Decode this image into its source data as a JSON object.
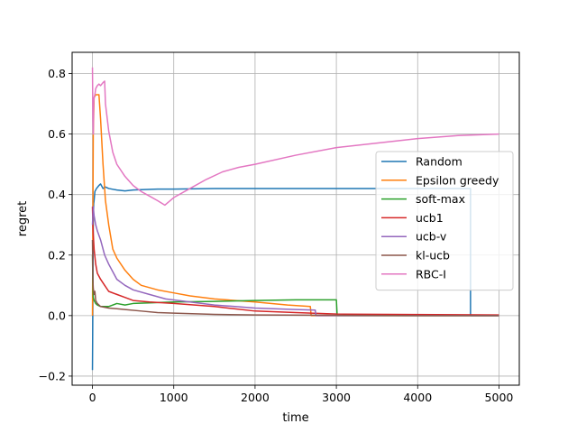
{
  "chart_data": {
    "type": "line",
    "title": "",
    "xlabel": "time",
    "ylabel": "regret",
    "xlim": [
      -250,
      5250
    ],
    "ylim": [
      -0.23,
      0.87
    ],
    "xticks": [
      0,
      1000,
      2000,
      3000,
      4000,
      5000
    ],
    "xtick_labels": [
      "0",
      "1000",
      "2000",
      "3000",
      "4000",
      "5000"
    ],
    "yticks": [
      -0.2,
      0.0,
      0.2,
      0.4,
      0.6,
      0.8
    ],
    "ytick_labels": [
      "−0.2",
      "0.0",
      "0.2",
      "0.4",
      "0.6",
      "0.8"
    ],
    "grid": true,
    "legend_position": "center-right",
    "series": [
      {
        "name": "Random",
        "color": "#1f77b4",
        "x": [
          0,
          3,
          6,
          10,
          15,
          20,
          30,
          50,
          80,
          100,
          130,
          160,
          200,
          300,
          400,
          500,
          600,
          800,
          1000,
          1500,
          2000,
          2500,
          3000,
          3500,
          4000,
          4500,
          4650,
          4650,
          4652,
          5000
        ],
        "y": [
          -0.18,
          -0.05,
          0.1,
          0.3,
          0.37,
          0.38,
          0.41,
          0.42,
          0.43,
          0.435,
          0.42,
          0.425,
          0.42,
          0.415,
          0.412,
          0.415,
          0.416,
          0.418,
          0.418,
          0.42,
          0.42,
          0.42,
          0.42,
          0.42,
          0.42,
          0.42,
          0.42,
          0.005,
          0.0,
          0.0
        ]
      },
      {
        "name": "Epsilon greedy",
        "color": "#ff7f0e",
        "x": [
          0,
          10,
          20,
          40,
          60,
          80,
          100,
          130,
          160,
          200,
          250,
          300,
          400,
          500,
          600,
          800,
          1000,
          1200,
          1500,
          2000,
          2400,
          2680,
          2690,
          5000
        ],
        "y": [
          0.0,
          0.6,
          0.72,
          0.73,
          0.73,
          0.73,
          0.65,
          0.5,
          0.38,
          0.3,
          0.22,
          0.19,
          0.15,
          0.12,
          0.1,
          0.085,
          0.075,
          0.065,
          0.055,
          0.045,
          0.035,
          0.03,
          0.0,
          0.0
        ]
      },
      {
        "name": "soft-max",
        "color": "#2ca02c",
        "x": [
          0,
          5,
          10,
          20,
          40,
          60,
          100,
          200,
          300,
          400,
          500,
          700,
          1000,
          1500,
          2000,
          2500,
          3000,
          3010,
          5000
        ],
        "y": [
          0.2,
          0.1,
          0.06,
          0.05,
          0.04,
          0.035,
          0.03,
          0.03,
          0.04,
          0.035,
          0.04,
          0.042,
          0.045,
          0.047,
          0.05,
          0.052,
          0.052,
          0.0,
          0.0
        ]
      },
      {
        "name": "ucb1",
        "color": "#d62728",
        "x": [
          0,
          5,
          10,
          20,
          40,
          60,
          100,
          150,
          200,
          300,
          400,
          500,
          700,
          1000,
          1500,
          2000,
          2500,
          3000,
          5000
        ],
        "y": [
          0.36,
          0.3,
          0.27,
          0.22,
          0.17,
          0.14,
          0.12,
          0.1,
          0.08,
          0.07,
          0.06,
          0.05,
          0.045,
          0.04,
          0.03,
          0.015,
          0.01,
          0.005,
          0.002
        ]
      },
      {
        "name": "ucb-v",
        "color": "#9467bd",
        "x": [
          0,
          10,
          20,
          40,
          60,
          100,
          150,
          200,
          300,
          400,
          500,
          700,
          900,
          1200,
          1500,
          2000,
          2500,
          2740,
          2750,
          5000
        ],
        "y": [
          0.3,
          0.36,
          0.33,
          0.3,
          0.28,
          0.25,
          0.2,
          0.17,
          0.12,
          0.1,
          0.085,
          0.07,
          0.055,
          0.045,
          0.035,
          0.025,
          0.02,
          0.018,
          0.0,
          0.0
        ]
      },
      {
        "name": "kl-ucb",
        "color": "#8c564b",
        "x": [
          0,
          5,
          10,
          20,
          30,
          40,
          60,
          100,
          200,
          400,
          600,
          800,
          1000,
          1500,
          2000,
          3000,
          4000,
          5000
        ],
        "y": [
          0.25,
          0.12,
          0.09,
          0.07,
          0.08,
          0.05,
          0.04,
          0.03,
          0.025,
          0.02,
          0.015,
          0.01,
          0.008,
          0.004,
          0.002,
          0.001,
          0.0,
          0.0
        ]
      },
      {
        "name": "RBC-I",
        "color": "#e377c2",
        "x": [
          0,
          5,
          10,
          15,
          20,
          30,
          40,
          60,
          80,
          100,
          130,
          150,
          160,
          200,
          250,
          300,
          400,
          500,
          600,
          700,
          800,
          890,
          1000,
          1200,
          1400,
          1600,
          1800,
          2000,
          2500,
          3000,
          3500,
          4000,
          4500,
          5000
        ],
        "y": [
          0.82,
          0.65,
          0.6,
          0.7,
          0.72,
          0.73,
          0.75,
          0.76,
          0.765,
          0.76,
          0.77,
          0.775,
          0.7,
          0.61,
          0.54,
          0.5,
          0.46,
          0.43,
          0.41,
          0.395,
          0.38,
          0.365,
          0.39,
          0.42,
          0.45,
          0.475,
          0.49,
          0.5,
          0.53,
          0.555,
          0.57,
          0.585,
          0.595,
          0.6
        ]
      }
    ]
  }
}
